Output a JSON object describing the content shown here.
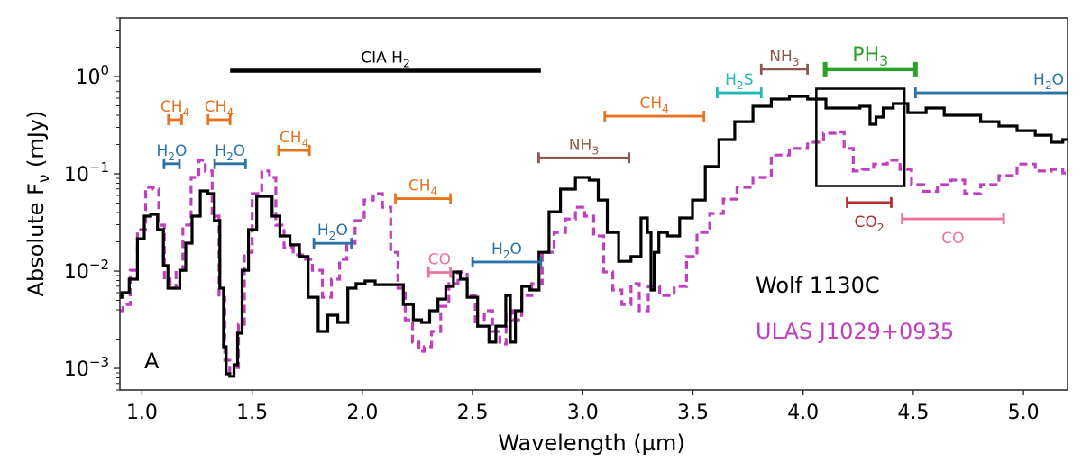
{
  "chart_data": {
    "type": "line",
    "panel_label": "A",
    "xlabel": "Wavelength (µm)",
    "ylabel": "Absolute Fν (mJy)",
    "ylabel_main": "Absolute F",
    "ylabel_sub": "ν",
    "ylabel_unit": " (mJy)",
    "xscale": "linear",
    "yscale": "log",
    "xlim": [
      0.9,
      5.2
    ],
    "ylim": [
      0.0006,
      4.0
    ],
    "grid": false,
    "x_ticks": [
      {
        "value": 1.0,
        "label": "1.0"
      },
      {
        "value": 1.5,
        "label": "1.5"
      },
      {
        "value": 2.0,
        "label": "2.0"
      },
      {
        "value": 2.5,
        "label": "2.5"
      },
      {
        "value": 3.0,
        "label": "3.0"
      },
      {
        "value": 3.5,
        "label": "3.5"
      },
      {
        "value": 4.0,
        "label": "4.0"
      },
      {
        "value": 4.5,
        "label": "4.5"
      },
      {
        "value": 5.0,
        "label": "5.0"
      }
    ],
    "y_ticks": [
      {
        "value": 1,
        "base": "10",
        "exp": "0"
      },
      {
        "value": 0.1,
        "base": "10",
        "exp": "−1"
      },
      {
        "value": 0.01,
        "base": "10",
        "exp": "−2"
      },
      {
        "value": 0.001,
        "base": "10",
        "exp": "−3"
      }
    ],
    "legend_placement": "lower-right",
    "series": [
      {
        "name": "Wolf 1130C",
        "color": "#000000",
        "style": "solid-step",
        "points": [
          [
            0.897,
            0.00538
          ],
          [
            0.921,
            0.006
          ],
          [
            0.963,
            0.00826
          ],
          [
            0.996,
            0.0215
          ],
          [
            1.025,
            0.0367
          ],
          [
            1.054,
            0.0383
          ],
          [
            1.087,
            0.0267
          ],
          [
            1.107,
            0.0114
          ],
          [
            1.128,
            0.00667
          ],
          [
            1.157,
            0.00667
          ],
          [
            1.186,
            0.0102
          ],
          [
            1.211,
            0.0194
          ],
          [
            1.244,
            0.0367
          ],
          [
            1.285,
            0.0667
          ],
          [
            1.314,
            0.0626
          ],
          [
            1.343,
            0.033
          ],
          [
            1.364,
            0.00667
          ],
          [
            1.376,
            0.00167
          ],
          [
            1.388,
            0.00088
          ],
          [
            1.409,
            0.00083
          ],
          [
            1.426,
            0.00109
          ],
          [
            1.442,
            0.0023
          ],
          [
            1.467,
            0.0102
          ],
          [
            1.5,
            0.0267
          ],
          [
            1.541,
            0.0587
          ],
          [
            1.574,
            0.0587
          ],
          [
            1.607,
            0.0367
          ],
          [
            1.645,
            0.023
          ],
          [
            1.698,
            0.0186
          ],
          [
            1.731,
            0.0141
          ],
          [
            1.777,
            0.00538
          ],
          [
            1.822,
            0.0024
          ],
          [
            1.864,
            0.00352
          ],
          [
            1.913,
            0.00297
          ],
          [
            1.955,
            0.00667
          ],
          [
            1.988,
            0.00742
          ],
          [
            2.037,
            0.00791
          ],
          [
            2.079,
            0.00726
          ],
          [
            2.161,
            0.00726
          ],
          [
            2.211,
            0.00454
          ],
          [
            2.252,
            0.00316
          ],
          [
            2.285,
            0.00297
          ],
          [
            2.326,
            0.00392
          ],
          [
            2.36,
            0.00516
          ],
          [
            2.397,
            0.00696
          ],
          [
            2.43,
            0.00979
          ],
          [
            2.459,
            0.00826
          ],
          [
            2.492,
            0.00538
          ],
          [
            2.554,
            0.00272
          ],
          [
            2.595,
            0.00186
          ],
          [
            2.616,
            0.00272
          ],
          [
            2.64,
            0.00272
          ],
          [
            2.661,
            0.00562
          ],
          [
            2.682,
            0.00186
          ],
          [
            2.707,
            0.00392
          ],
          [
            2.74,
            0.00696
          ],
          [
            2.781,
            0.0064
          ],
          [
            2.822,
            0.0156
          ],
          [
            2.872,
            0.0408
          ],
          [
            2.926,
            0.0697
          ],
          [
            3.008,
            0.0918
          ],
          [
            3.05,
            0.0861
          ],
          [
            3.091,
            0.0538
          ],
          [
            3.132,
            0.025
          ],
          [
            3.194,
            0.0126
          ],
          [
            3.244,
            0.0141
          ],
          [
            3.285,
            0.0352
          ],
          [
            3.302,
            0.025
          ],
          [
            3.318,
            0.0064
          ],
          [
            3.331,
            0.0156
          ],
          [
            3.36,
            0.025
          ],
          [
            3.409,
            0.023
          ],
          [
            3.471,
            0.0352
          ],
          [
            3.525,
            0.0538
          ],
          [
            3.587,
            0.119
          ],
          [
            3.649,
            0.225
          ],
          [
            3.731,
            0.344
          ],
          [
            3.814,
            0.495
          ],
          [
            3.897,
            0.587
          ],
          [
            3.979,
            0.626
          ],
          [
            4.062,
            0.587
          ],
          [
            4.145,
            0.474
          ],
          [
            4.227,
            0.474
          ],
          [
            4.289,
            0.495
          ],
          [
            4.318,
            0.323
          ],
          [
            4.343,
            0.383
          ],
          [
            4.384,
            0.474
          ],
          [
            4.434,
            0.528
          ],
          [
            4.517,
            0.426
          ],
          [
            4.599,
            0.474
          ],
          [
            4.682,
            0.4
          ],
          [
            4.764,
            0.4
          ],
          [
            4.847,
            0.344
          ],
          [
            4.93,
            0.31
          ],
          [
            5.012,
            0.278
          ],
          [
            5.095,
            0.25
          ],
          [
            5.157,
            0.211
          ],
          [
            5.2,
            0.225
          ]
        ]
      },
      {
        "name": "ULAS J1029+0935",
        "color": "#bf3fbf",
        "style": "dashed-step",
        "points": [
          [
            0.897,
            0.00392
          ],
          [
            0.93,
            0.00454
          ],
          [
            0.963,
            0.0102
          ],
          [
            0.996,
            0.0267
          ],
          [
            1.037,
            0.0726
          ],
          [
            1.066,
            0.0697
          ],
          [
            1.087,
            0.0297
          ],
          [
            1.116,
            0.00826
          ],
          [
            1.14,
            0.00667
          ],
          [
            1.169,
            0.0102
          ],
          [
            1.202,
            0.0297
          ],
          [
            1.244,
            0.0918
          ],
          [
            1.273,
            0.138
          ],
          [
            1.302,
            0.107
          ],
          [
            1.335,
            0.0367
          ],
          [
            1.364,
            0.00538
          ],
          [
            1.388,
            0.00121
          ],
          [
            1.409,
            0.00083
          ],
          [
            1.426,
            0.00102
          ],
          [
            1.45,
            0.00284
          ],
          [
            1.479,
            0.0156
          ],
          [
            1.521,
            0.0626
          ],
          [
            1.566,
            0.107
          ],
          [
            1.591,
            0.0918
          ],
          [
            1.624,
            0.0297
          ],
          [
            1.665,
            0.0174
          ],
          [
            1.707,
            0.0147
          ],
          [
            1.748,
            0.0132
          ],
          [
            1.798,
            0.0102
          ],
          [
            1.839,
            0.00538
          ],
          [
            1.88,
            0.00826
          ],
          [
            1.913,
            0.0132
          ],
          [
            1.946,
            0.0194
          ],
          [
            1.988,
            0.033
          ],
          [
            2.029,
            0.0538
          ],
          [
            2.07,
            0.0626
          ],
          [
            2.112,
            0.0454
          ],
          [
            2.145,
            0.0156
          ],
          [
            2.178,
            0.00667
          ],
          [
            2.211,
            0.00316
          ],
          [
            2.244,
            0.00186
          ],
          [
            2.269,
            0.0015
          ],
          [
            2.293,
            0.00167
          ],
          [
            2.335,
            0.0024
          ],
          [
            2.376,
            0.00435
          ],
          [
            2.409,
            0.00742
          ],
          [
            2.459,
            0.00979
          ],
          [
            2.492,
            0.00562
          ],
          [
            2.533,
            0.00272
          ],
          [
            2.574,
            0.00392
          ],
          [
            2.607,
            0.0024
          ],
          [
            2.64,
            0.00178
          ],
          [
            2.665,
            0.00392
          ],
          [
            2.698,
            0.00316
          ],
          [
            2.748,
            0.00562
          ],
          [
            2.789,
            0.00742
          ],
          [
            2.843,
            0.0156
          ],
          [
            2.897,
            0.025
          ],
          [
            2.946,
            0.0344
          ],
          [
            2.988,
            0.0454
          ],
          [
            3.029,
            0.0367
          ],
          [
            3.07,
            0.023
          ],
          [
            3.12,
            0.00979
          ],
          [
            3.153,
            0.0064
          ],
          [
            3.202,
            0.00454
          ],
          [
            3.236,
            0.00742
          ],
          [
            3.277,
            0.00392
          ],
          [
            3.318,
            0.00696
          ],
          [
            3.38,
            0.00562
          ],
          [
            3.45,
            0.00696
          ],
          [
            3.492,
            0.0141
          ],
          [
            3.545,
            0.025
          ],
          [
            3.607,
            0.0392
          ],
          [
            3.669,
            0.055
          ],
          [
            3.731,
            0.0726
          ],
          [
            3.814,
            0.0918
          ],
          [
            3.897,
            0.156
          ],
          [
            3.979,
            0.182
          ],
          [
            4.062,
            0.211
          ],
          [
            4.124,
            0.261
          ],
          [
            4.165,
            0.27
          ],
          [
            4.207,
            0.182
          ],
          [
            4.248,
            0.107
          ],
          [
            4.289,
            0.111
          ],
          [
            4.351,
            0.126
          ],
          [
            4.413,
            0.138
          ],
          [
            4.467,
            0.111
          ],
          [
            4.517,
            0.0774
          ],
          [
            4.579,
            0.066
          ],
          [
            4.64,
            0.0774
          ],
          [
            4.702,
            0.0861
          ],
          [
            4.764,
            0.0626
          ],
          [
            4.847,
            0.0774
          ],
          [
            4.93,
            0.0958
          ],
          [
            5.012,
            0.126
          ],
          [
            5.095,
            0.107
          ],
          [
            5.157,
            0.111
          ],
          [
            5.2,
            0.102
          ]
        ]
      }
    ],
    "annotations": [
      {
        "label": "CIA H",
        "sub": "2",
        "x0": 1.4,
        "x1": 2.81,
        "y": 1.15,
        "color": "#000000",
        "label_pos": "above",
        "weight": "thick"
      },
      {
        "label": "CH",
        "sub": "4",
        "x0": 1.12,
        "x1": 1.18,
        "y": 0.36,
        "color": "#e8731e",
        "label_pos": "above"
      },
      {
        "label": "CH",
        "sub": "4",
        "x0": 1.3,
        "x1": 1.4,
        "y": 0.36,
        "color": "#e8731e",
        "label_pos": "above"
      },
      {
        "label": "H",
        "sub": "2",
        "tail": "O",
        "x0": 1.1,
        "x1": 1.17,
        "y": 0.127,
        "color": "#2b72a8",
        "label_pos": "above"
      },
      {
        "label": "H",
        "sub": "2",
        "tail": "O",
        "x0": 1.33,
        "x1": 1.47,
        "y": 0.127,
        "color": "#2b72a8",
        "label_pos": "above"
      },
      {
        "label": "CH",
        "sub": "4",
        "x0": 1.62,
        "x1": 1.76,
        "y": 0.174,
        "color": "#e8731e",
        "label_pos": "above"
      },
      {
        "label": "H",
        "sub": "2",
        "tail": "O",
        "x0": 1.78,
        "x1": 1.95,
        "y": 0.0193,
        "color": "#2b72a8",
        "label_pos": "above"
      },
      {
        "label": "CH",
        "sub": "4",
        "x0": 2.15,
        "x1": 2.4,
        "y": 0.0556,
        "color": "#e8731e",
        "label_pos": "above"
      },
      {
        "label": "CO",
        "x0": 2.3,
        "x1": 2.4,
        "y": 0.0097,
        "color": "#e8739e",
        "label_pos": "above"
      },
      {
        "label": "H",
        "sub": "2",
        "tail": "O",
        "x0": 2.5,
        "x1": 2.81,
        "y": 0.0124,
        "color": "#2b72a8",
        "label_pos": "above"
      },
      {
        "label": "NH",
        "sub": "3",
        "x0": 2.8,
        "x1": 3.21,
        "y": 0.146,
        "color": "#8c564b",
        "label_pos": "above"
      },
      {
        "label": "CH",
        "sub": "4",
        "x0": 3.1,
        "x1": 3.55,
        "y": 0.391,
        "color": "#e8731e",
        "label_pos": "above"
      },
      {
        "label": "H",
        "sub": "2",
        "tail": "S",
        "x0": 3.61,
        "x1": 3.81,
        "y": 0.681,
        "color": "#22b8b8",
        "label_pos": "above"
      },
      {
        "label": "NH",
        "sub": "3",
        "x0": 3.81,
        "x1": 4.02,
        "y": 1.19,
        "color": "#8c564b",
        "label_pos": "above"
      },
      {
        "label": "PH",
        "sub": "3",
        "x0": 4.1,
        "x1": 4.51,
        "y": 1.19,
        "color": "#2ca02c",
        "label_pos": "above",
        "weight": "thick",
        "large": true
      },
      {
        "label": "H",
        "sub": "2",
        "tail": "O",
        "x0": 4.51,
        "x1": 5.2,
        "y": 0.681,
        "color": "#2b72a8",
        "label_pos": "above-right",
        "open_right": true
      },
      {
        "label": "CO",
        "sub": "2",
        "x0": 4.2,
        "x1": 4.4,
        "y": 0.0507,
        "color": "#b03030",
        "label_pos": "below"
      },
      {
        "label": "CO",
        "x0": 4.45,
        "x1": 4.91,
        "y": 0.0344,
        "color": "#e8739e",
        "label_pos": "below"
      }
    ],
    "highlight_box": {
      "x0": 4.06,
      "x1": 4.46,
      "y0": 0.075,
      "y1": 0.75,
      "color": "#000000"
    }
  }
}
